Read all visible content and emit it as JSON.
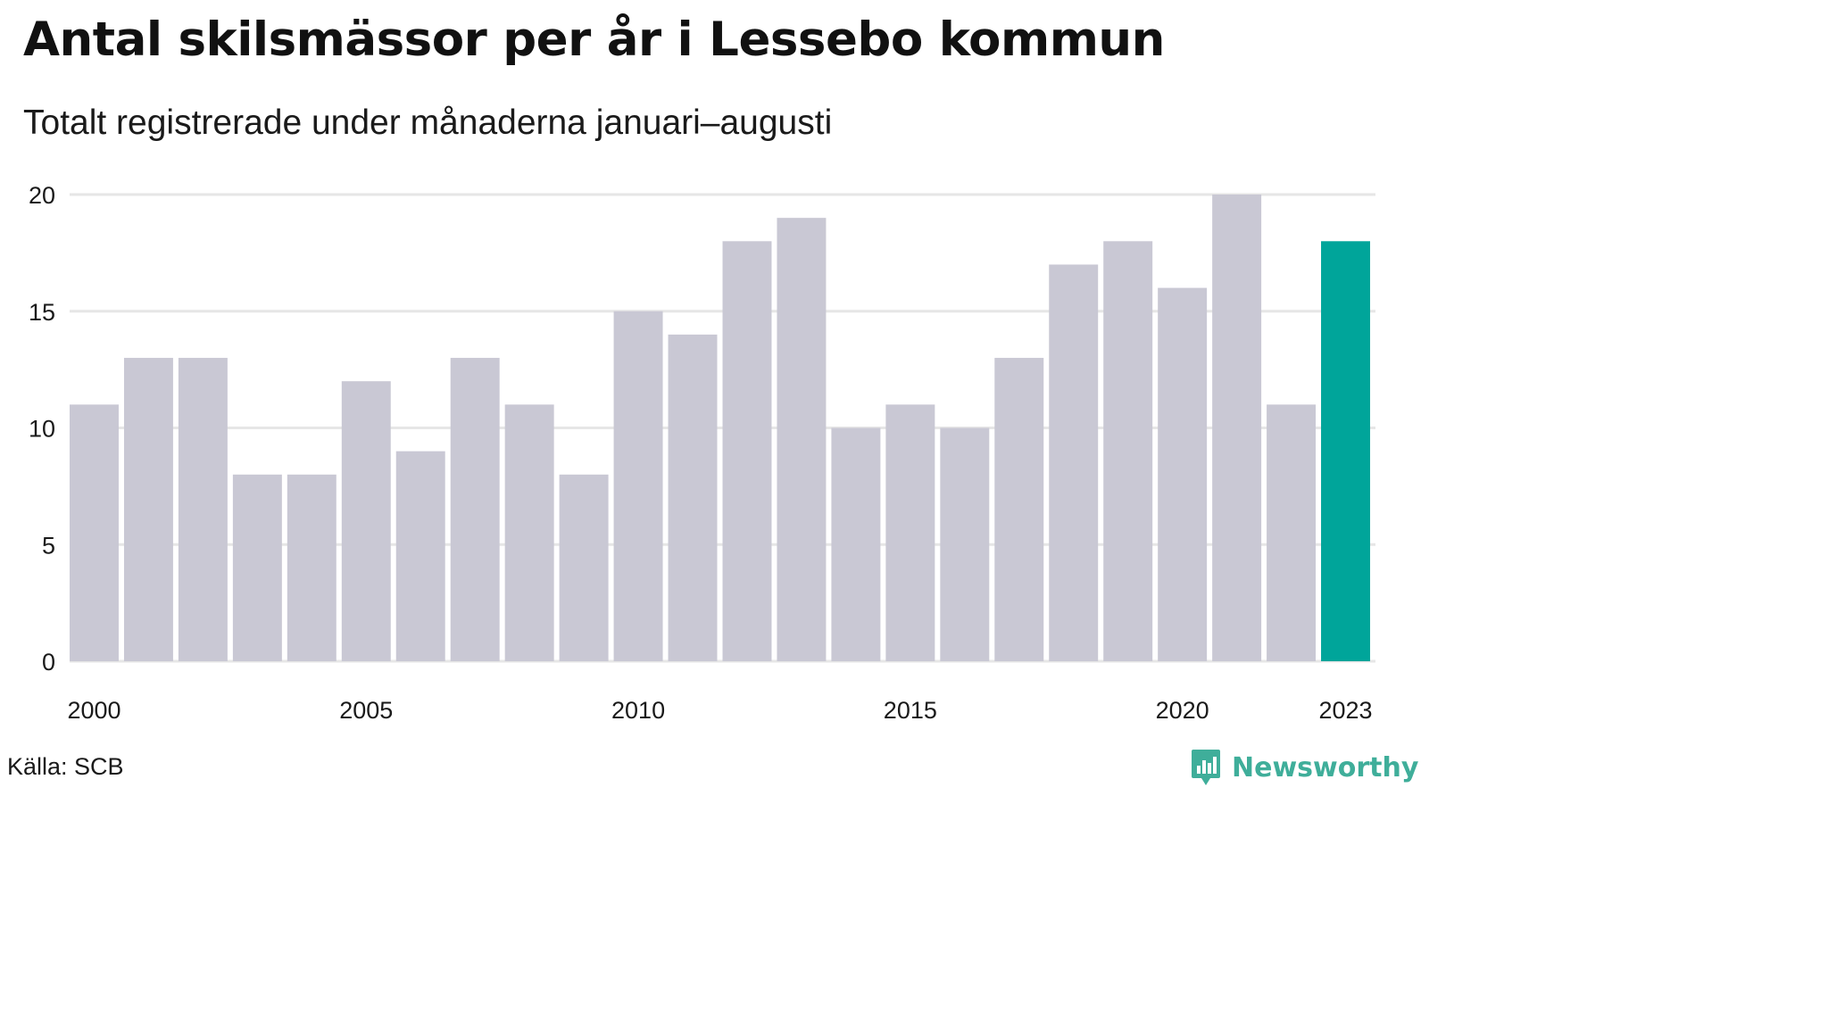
{
  "title": "Antal skilsmässor per år i Lessebo kommun",
  "subtitle": "Totalt registrerade under månaderna januari–augusti",
  "source": "Källa: SCB",
  "brand": {
    "name": "Newsworthy",
    "icon": "bar-chart-badge-icon",
    "color": "#3fae9a"
  },
  "colors": {
    "bar": "#c9c8d4",
    "highlight": "#00a59a",
    "grid": "#e6e6e6"
  },
  "chart_data": {
    "type": "bar",
    "categories": [
      "2000",
      "2001",
      "2002",
      "2003",
      "2004",
      "2005",
      "2006",
      "2007",
      "2008",
      "2009",
      "2010",
      "2011",
      "2012",
      "2013",
      "2014",
      "2015",
      "2016",
      "2017",
      "2018",
      "2019",
      "2020",
      "2021",
      "2022",
      "2023"
    ],
    "values": [
      11,
      13,
      13,
      8,
      8,
      12,
      9,
      13,
      11,
      8,
      15,
      14,
      18,
      19,
      10,
      11,
      10,
      13,
      17,
      18,
      16,
      20,
      11,
      18
    ],
    "highlight_category": "2023",
    "x_tick_labels": [
      "2000",
      "2005",
      "2010",
      "2015",
      "2020",
      "2023"
    ],
    "y_ticks": [
      0,
      5,
      10,
      15,
      20
    ],
    "ylim": [
      0,
      20
    ],
    "xlabel": "",
    "ylabel": "",
    "grid": true
  }
}
